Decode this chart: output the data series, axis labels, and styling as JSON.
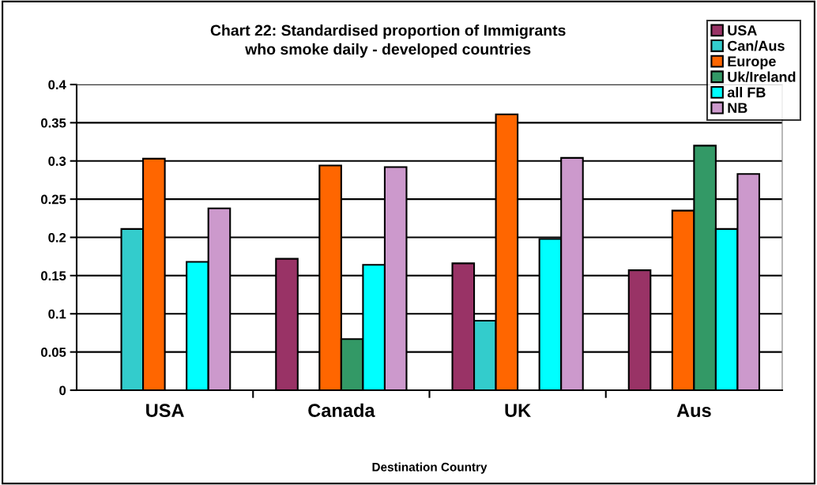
{
  "chart_data": {
    "type": "bar",
    "title": "Chart 22: Standardised proportion of Immigrants\nwho smoke daily - developed countries",
    "xlabel": "Destination Country",
    "categories": [
      "USA",
      "Canada",
      "UK",
      "Aus"
    ],
    "series": [
      {
        "name": "USA",
        "color": "#993366",
        "values": [
          null,
          0.172,
          0.166,
          0.157
        ]
      },
      {
        "name": "Can/Aus",
        "color": "#33cccc",
        "values": [
          0.211,
          null,
          0.091,
          null
        ]
      },
      {
        "name": "Europe",
        "color": "#ff6600",
        "values": [
          0.303,
          0.294,
          0.361,
          0.235
        ]
      },
      {
        "name": "Uk/Ireland",
        "color": "#339966",
        "values": [
          null,
          0.067,
          null,
          0.32
        ]
      },
      {
        "name": "all FB",
        "color": "#00ffff",
        "values": [
          0.168,
          0.164,
          0.198,
          0.211
        ]
      },
      {
        "name": "NB",
        "color": "#cc99cc",
        "values": [
          0.238,
          0.292,
          0.304,
          0.283
        ]
      }
    ],
    "ylim": [
      0,
      0.4
    ],
    "yticks": [
      {
        "value": 0,
        "label": "0"
      },
      0.05,
      0.1,
      0.15,
      0.2,
      0.25,
      0.3,
      0.35,
      0.4
    ],
    "grid": "y",
    "legend": "top right"
  }
}
